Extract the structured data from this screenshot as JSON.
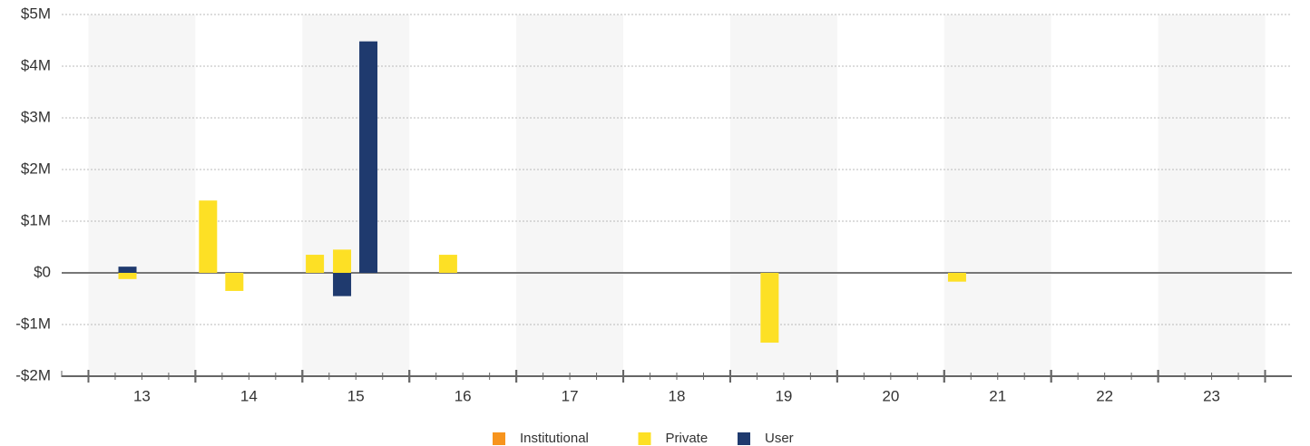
{
  "chart_data": {
    "type": "bar",
    "xlim": [
      12.25,
      23.75
    ],
    "xticks": [
      13,
      14,
      15,
      16,
      17,
      18,
      19,
      20,
      21,
      22,
      23
    ],
    "ylim": [
      -2000000,
      5000000
    ],
    "yticks": [
      {
        "value": -2000000,
        "label": "-$2M"
      },
      {
        "value": -1000000,
        "label": "-$1M"
      },
      {
        "value": 0,
        "label": "$0"
      },
      {
        "value": 1000000,
        "label": "$1M"
      },
      {
        "value": 2000000,
        "label": "$2M"
      },
      {
        "value": 3000000,
        "label": "$3M"
      },
      {
        "value": 4000000,
        "label": "$4M"
      },
      {
        "value": 5000000,
        "label": "$5M"
      }
    ],
    "grid": true,
    "legend": "bottom",
    "series": [
      {
        "name": "Institutional",
        "color": "#f7941d",
        "x": [],
        "values": []
      },
      {
        "name": "Private",
        "color": "#fde025",
        "x": [
          12.865,
          13.618,
          13.864,
          14.617,
          14.871,
          15.862,
          18.868,
          20.62
        ],
        "values": [
          -120000,
          1400000,
          -350000,
          350000,
          450000,
          350000,
          -1350000,
          -170000
        ]
      },
      {
        "name": "User",
        "color": "#1f3a6e",
        "x": [
          12.865,
          14.871,
          15.117
        ],
        "values": [
          120000,
          -450000,
          4480000
        ]
      }
    ]
  }
}
